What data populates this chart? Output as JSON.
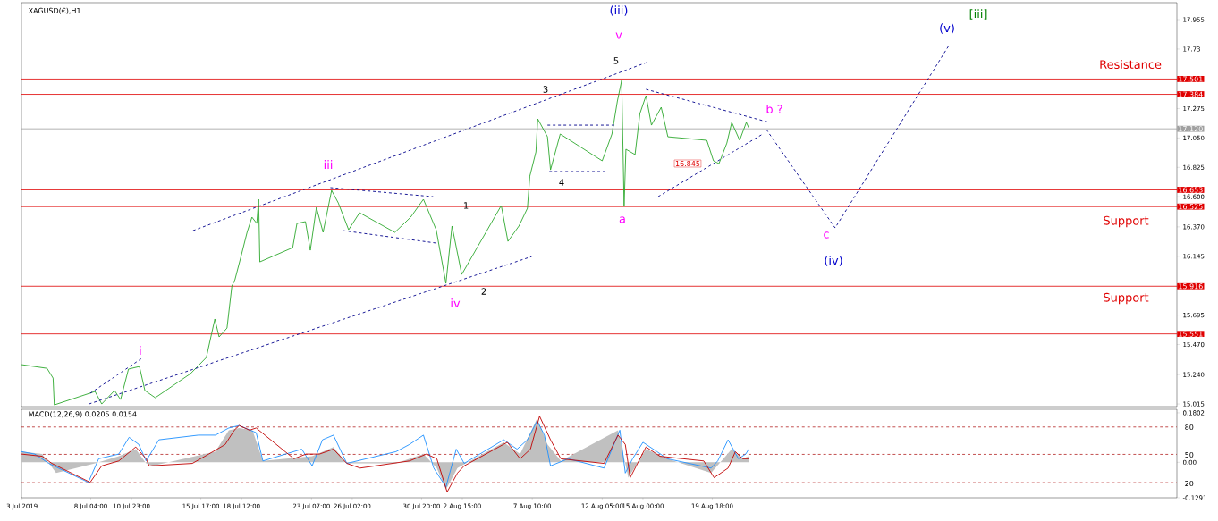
{
  "chart_data": [
    {
      "type": "line",
      "title": "XAGUSD(€),H1",
      "tick_labels": "y",
      "xlim": [
        "2019-07-03T10:00",
        "2019-09-20T14:00"
      ],
      "ylim": [
        14.995,
        18.085
      ],
      "yticks": [
        17.955,
        17.73,
        17.275,
        {
          "value": 17.05,
          "label": "17.050"
        },
        16.825,
        {
          "value": 16.6,
          "label": "16.600"
        },
        {
          "value": 16.37,
          "label": "16.370"
        },
        16.145,
        15.695,
        {
          "value": 15.47,
          "label": "15.470"
        },
        {
          "value": 15.24,
          "label": "15.240"
        },
        15.015
      ],
      "x": [
        "2019-07-03T10:00",
        "2019-07-05T04:00",
        "2019-07-05T14:00",
        "2019-07-05T16:00",
        "2019-07-08T11:00",
        "2019-07-08T22:00",
        "2019-07-09T19:00",
        "2019-07-10T05:00",
        "2019-07-10T18:00",
        "2019-07-11T12:00",
        "2019-07-11T21:00",
        "2019-07-12T14:00",
        "2019-07-15T00:00",
        "2019-07-15T16:00",
        "2019-07-16T02:00",
        "2019-07-16T16:00",
        "2019-07-16T23:00",
        "2019-07-17T12:00",
        "2019-07-17T20:00",
        "2019-07-18T01:00",
        "2019-07-18T11:00",
        "2019-07-18T21:00",
        "2019-07-19T05:00",
        "2019-07-19T13:00",
        "2019-07-19T16:00",
        "2019-07-19T18:00",
        "2019-07-22T00:00",
        "2019-07-22T07:00",
        "2019-07-22T21:00",
        "2019-07-23T05:00",
        "2019-07-23T15:00",
        "2019-07-24T02:00",
        "2019-07-24T16:00",
        "2019-07-25T03:00",
        "2019-07-25T20:00",
        "2019-07-26T14:00",
        "2019-07-29T00:00",
        "2019-07-30T02:00",
        "2019-07-30T23:00",
        "2019-07-31T20:00",
        "2019-08-01T12:00",
        "2019-08-01T22:00",
        "2019-08-02T14:00",
        "2019-08-05T07:00",
        "2019-08-05T18:00",
        "2019-08-06T12:00",
        "2019-08-07T02:00",
        "2019-08-07T06:00",
        "2019-08-07T16:00",
        "2019-08-07T19:00",
        "2019-08-08T11:00",
        "2019-08-08T16:00",
        "2019-08-09T08:00",
        "2019-08-12T05:00",
        "2019-08-12T21:00",
        "2019-08-13T06:00",
        "2019-08-13T13:00",
        "2019-08-13T17:00",
        "2019-08-13T20:00",
        "2019-08-14T11:00",
        "2019-08-14T19:00",
        "2019-08-15T05:00",
        "2019-08-15T14:00",
        "2019-08-16T06:00",
        "2019-08-16T17:00",
        "2019-08-19T09:00",
        "2019-08-19T20:00",
        "2019-08-20T05:00",
        "2019-08-20T18:00",
        "2019-08-21T02:00",
        "2019-08-21T15:00",
        "2019-08-22T02:00",
        "2019-08-22T06:00"
      ],
      "series": [
        {
          "color": "#2ea82e",
          "values": [
            15.316,
            15.288,
            15.213,
            15.008,
            15.111,
            15.015,
            15.118,
            15.049,
            15.282,
            15.302,
            15.118,
            15.063,
            15.247,
            15.323,
            15.371,
            15.665,
            15.528,
            15.596,
            15.917,
            15.965,
            16.143,
            16.328,
            16.444,
            16.396,
            16.581,
            16.102,
            16.211,
            16.396,
            16.41,
            16.191,
            16.519,
            16.328,
            16.649,
            16.553,
            16.348,
            16.478,
            16.328,
            16.444,
            16.581,
            16.348,
            15.938,
            16.376,
            16.006,
            16.533,
            16.259,
            16.376,
            16.512,
            16.758,
            16.943,
            17.196,
            17.059,
            16.806,
            17.08,
            16.875,
            17.08,
            17.333,
            17.49,
            16.526,
            16.964,
            16.923,
            17.237,
            17.374,
            17.148,
            17.285,
            17.059,
            17.032,
            16.875,
            16.854,
            17.011,
            17.169,
            17.032,
            17.169,
            17.128
          ]
        },
        {
          "color": "#00008b",
          "line_style": "dashed",
          "x": [
            "2019-07-15T04:00",
            "2019-08-15T06:00"
          ],
          "values": [
            16.341,
            17.627
          ]
        },
        {
          "color": "#00008b",
          "line_style": "dashed",
          "x": [
            "2019-07-08T01:00",
            "2019-08-07T09:00"
          ],
          "values": [
            15.015,
            16.143
          ]
        },
        {
          "color": "#00008b",
          "line_style": "dashed",
          "x": [
            "2019-08-15T05:00",
            "2019-08-23T16:00"
          ],
          "values": [
            17.422,
            17.169
          ]
        },
        {
          "color": "#00008b",
          "line_style": "dashed",
          "x": [
            "2019-08-16T01:00",
            "2019-08-23T05:00"
          ],
          "values": [
            16.601,
            17.08
          ]
        },
        {
          "color": "#00008b",
          "line_style": "dashed",
          "x": [
            "2019-08-23T11:00",
            "2019-08-28T04:00",
            "2019-09-05T00:00"
          ],
          "values": [
            17.114,
            16.362,
            17.764
          ]
        },
        {
          "color": "#00008b",
          "line_style": "dashed",
          "x": [
            "2019-07-08T03:00",
            "2019-07-11T18:00"
          ],
          "values": [
            15.097,
            15.371
          ]
        },
        {
          "color": "#00008b",
          "line_style": "dashed",
          "x": [
            "2019-07-24T14:00",
            "2019-07-31T15:00"
          ],
          "values": [
            16.67,
            16.601
          ]
        },
        {
          "color": "#00008b",
          "line_style": "dashed",
          "x": [
            "2019-07-25T11:00",
            "2019-07-31T20:00"
          ],
          "values": [
            16.341,
            16.246
          ]
        },
        {
          "color": "#00008b",
          "line_style": "dashed",
          "x": [
            "2019-08-08T11:00",
            "2019-08-13T03:00"
          ],
          "values": [
            17.148,
            17.148
          ]
        },
        {
          "color": "#00008b",
          "line_style": "dashed",
          "x": [
            "2019-08-08T14:00",
            "2019-08-12T10:00"
          ],
          "values": [
            16.793,
            16.793
          ]
        }
      ],
      "ref_lines": [
        {
          "axis": "y",
          "value": 17.501,
          "label": "17.501",
          "color": "#e00000"
        },
        {
          "axis": "y",
          "value": 17.384,
          "label": "17.384",
          "color": "#e00000"
        },
        {
          "axis": "y",
          "value": 17.12,
          "label": "17.120",
          "color": "#a0a0a0"
        },
        {
          "axis": "y",
          "value": 16.653,
          "label": "16.653",
          "color": "#e00000"
        },
        {
          "axis": "y",
          "value": 16.525,
          "label": "16.525",
          "color": "#e00000"
        },
        {
          "axis": "y",
          "value": 15.916,
          "label": "15.916",
          "color": "#e00000"
        },
        {
          "axis": "y",
          "value": 15.551,
          "label": "15.551",
          "color": "#e00000"
        }
      ],
      "annotations": [
        "(iii)",
        "v",
        "5",
        "3",
        "iii",
        "1",
        "4",
        "a",
        "b ?",
        "c",
        "(iv)",
        "(v)",
        "[iii]",
        "Resistance",
        "Support",
        "Support",
        "iv",
        "2",
        "i",
        "16.845"
      ]
    },
    {
      "type": "line",
      "title": "MACD(12,26,9) 0.0205 0.0154",
      "xlim": [
        "2019-07-03T10:00",
        "2019-09-20T14:00"
      ],
      "ylim": [
        -0.1291,
        0.1931
      ],
      "xticks": [
        {
          "value": "2019-07-03T11:00",
          "label": "3 Jul 2019"
        },
        {
          "value": "2019-07-08T04:00",
          "label": "8 Jul 04:00"
        },
        {
          "value": "2019-07-10T23:00",
          "label": "10 Jul 23:00"
        },
        {
          "value": "2019-07-15T17:00",
          "label": "15 Jul 17:00"
        },
        {
          "value": "2019-07-18T12:00",
          "label": "18 Jul 12:00"
        },
        {
          "value": "2019-07-23T07:00",
          "label": "23 Jul 07:00"
        },
        {
          "value": "2019-07-26T02:00",
          "label": "26 Jul 02:00"
        },
        {
          "value": "2019-07-30T20:00",
          "label": "30 Jul 20:00"
        },
        {
          "value": "2019-08-02T15:00",
          "label": "2 Aug 15:00"
        },
        {
          "value": "2019-08-07T10:00",
          "label": "7 Aug 10:00"
        },
        {
          "value": "2019-08-12T05:00",
          "label": "12 Aug 05:00"
        },
        {
          "value": "2019-08-15T00:00",
          "label": "15 Aug 00:00"
        },
        {
          "value": "2019-08-19T18:00",
          "label": "19 Aug 18:00"
        }
      ],
      "yticks": [
        0.1802,
        {
          "value": 0,
          "label": "0.00"
        },
        -0.1291
      ],
      "x": [
        "2019-07-03T10:00",
        "2019-07-04T08:00",
        "2019-07-05T07:00",
        "2019-07-08T00:00",
        "2019-07-08T17:00",
        "2019-07-10T02:00",
        "2019-07-10T19:00",
        "2019-07-11T11:00",
        "2019-07-11T23:00",
        "2019-07-12T20:00",
        "2019-07-15T13:00",
        "2019-07-16T17:00",
        "2019-07-17T15:00",
        "2019-07-18T08:00",
        "2019-07-19T12:00",
        "2019-07-19T23:00",
        "2019-07-22T15:00",
        "2019-07-23T08:00",
        "2019-07-24T01:00",
        "2019-07-24T19:00",
        "2019-07-25T17:00",
        "2019-07-29T02:00",
        "2019-07-30T00:00",
        "2019-07-30T23:00",
        "2019-07-31T16:00",
        "2019-08-01T12:00",
        "2019-08-02T05:00",
        "2019-08-02T18:00",
        "2019-08-05T11:00",
        "2019-08-06T09:00",
        "2019-08-07T02:00",
        "2019-08-07T18:00",
        "2019-08-08T06:00",
        "2019-08-08T16:00",
        "2019-08-09T21:00",
        "2019-08-12T08:00",
        "2019-08-13T10:00",
        "2019-08-13T19:00",
        "2019-08-14T07:00",
        "2019-08-15T00:00",
        "2019-08-15T23:00",
        "2019-08-16T16:00",
        "2019-08-19T16:00",
        "2019-08-20T03:00",
        "2019-08-20T20:00",
        "2019-08-21T13:00",
        "2019-08-22T01:00",
        "2019-08-22T06:00"
      ],
      "series": [
        {
          "type": "area",
          "color": "#c0c0c0",
          "x": [
            "2019-07-03T10:00",
            "2019-07-04T20:00",
            "2019-07-05T19:00",
            "2019-07-08T11:00",
            "2019-07-10T02:00",
            "2019-07-11T06:00",
            "2019-07-11T23:00",
            "2019-07-12T10:00",
            "2019-07-16T17:00",
            "2019-07-17T15:00",
            "2019-07-18T08:00",
            "2019-07-19T06:00",
            "2019-07-19T23:00",
            "2019-07-23T08:00",
            "2019-07-24T19:00",
            "2019-07-25T17:00",
            "2019-07-29T02:00",
            "2019-07-30T23:00",
            "2019-07-31T21:00",
            "2019-08-01T12:00",
            "2019-08-02T07:00",
            "2019-08-05T11:00",
            "2019-08-06T14:00",
            "2019-08-07T18:00",
            "2019-08-08T11:00",
            "2019-08-09T09:00",
            "2019-08-13T07:00",
            "2019-08-14T00:00",
            "2019-08-15T05:00",
            "2019-08-16T16:00",
            "2019-08-19T16:00",
            "2019-08-21T02:00",
            "2019-08-21T20:00",
            "2019-08-22T06:00"
          ],
          "values": [
            0.039,
            0.03,
            -0.039,
            -0.004,
            0.022,
            0.048,
            -0.004,
            -0.013,
            0.039,
            0.117,
            0.125,
            0.117,
            0.005,
            0.022,
            0.056,
            -0.004,
            -0.004,
            0.03,
            -0.021,
            -0.099,
            -0.021,
            0.073,
            0.03,
            0.16,
            0.065,
            0.005,
            0.117,
            -0.056,
            0.048,
            0.013,
            -0.039,
            0.048,
            0.013,
            0.022
          ]
        },
        {
          "color": "#1e90ff",
          "values": [
            0.039,
            0.03,
            -0.004,
            -0.073,
            0.013,
            0.03,
            0.091,
            0.065,
            0.005,
            0.082,
            0.099,
            0.099,
            0.125,
            0.134,
            0.108,
            0.005,
            0.048,
            -0.013,
            0.082,
            0.099,
            -0.004,
            0.039,
            0.065,
            0.099,
            -0.021,
            -0.09,
            0.048,
            -0.004,
            0.082,
            0.048,
            0.082,
            0.151,
            0.099,
            -0.013,
            0.013,
            -0.021,
            0.117,
            -0.039,
            0.013,
            0.073,
            0.039,
            0.013,
            -0.021,
            0.005,
            0.082,
            0.013,
            0.03,
            0.048
          ]
        },
        {
          "color": "#c00000",
          "x": [
            "2019-07-03T10:00",
            "2019-07-04T20:00",
            "2019-07-05T12:00",
            "2019-07-08T03:00",
            "2019-07-08T22:00",
            "2019-07-10T02:00",
            "2019-07-11T06:00",
            "2019-07-11T23:00",
            "2019-07-12T04:00",
            "2019-07-15T03:00",
            "2019-07-16T06:00",
            "2019-07-17T09:00",
            "2019-07-18T00:00",
            "2019-07-18T08:00",
            "2019-07-19T01:00",
            "2019-07-19T12:00",
            "2019-07-22T02:00",
            "2019-07-22T22:00",
            "2019-07-23T20:00",
            "2019-07-24T19:00",
            "2019-07-25T17:00",
            "2019-07-26T15:00",
            "2019-07-30T00:00",
            "2019-07-31T04:00",
            "2019-07-31T21:00",
            "2019-08-01T14:00",
            "2019-08-02T07:00",
            "2019-08-02T18:00",
            "2019-08-05T17:00",
            "2019-08-06T14:00",
            "2019-08-07T07:00",
            "2019-08-07T22:00",
            "2019-08-08T16:00",
            "2019-08-09T09:00",
            "2019-08-12T08:00",
            "2019-08-13T07:00",
            "2019-08-13T19:00",
            "2019-08-14T03:00",
            "2019-08-15T05:00",
            "2019-08-16T04:00",
            "2019-08-19T04:00",
            "2019-08-19T21:00",
            "2019-08-20T20:00",
            "2019-08-21T08:00",
            "2019-08-21T20:00",
            "2019-08-22T06:00"
          ],
          "values": [
            0.03,
            0.022,
            -0.004,
            -0.073,
            -0.013,
            0.005,
            0.056,
            0.013,
            -0.013,
            -0.004,
            0.03,
            0.065,
            0.117,
            0.134,
            0.117,
            0.125,
            0.013,
            0.03,
            0.03,
            0.048,
            -0.004,
            -0.021,
            0.005,
            0.03,
            0.013,
            -0.108,
            -0.039,
            -0.013,
            0.073,
            0.013,
            0.048,
            0.168,
            0.082,
            0.013,
            -0.004,
            0.099,
            0.065,
            -0.056,
            0.056,
            0.022,
            0.005,
            -0.056,
            -0.021,
            0.039,
            0.013,
            0.013
          ]
        }
      ],
      "ref_lines": [
        {
          "axis": "y",
          "value": 0.1287,
          "color": "#b22222",
          "line_style": "dashed"
        },
        {
          "axis": "y",
          "value": 0.029,
          "color": "#b22222",
          "line_style": "dashed"
        },
        {
          "axis": "y",
          "value": -0.074,
          "color": "#b22222",
          "line_style": "dashed"
        }
      ],
      "annotations": [
        "80",
        "50",
        "20"
      ]
    }
  ]
}
